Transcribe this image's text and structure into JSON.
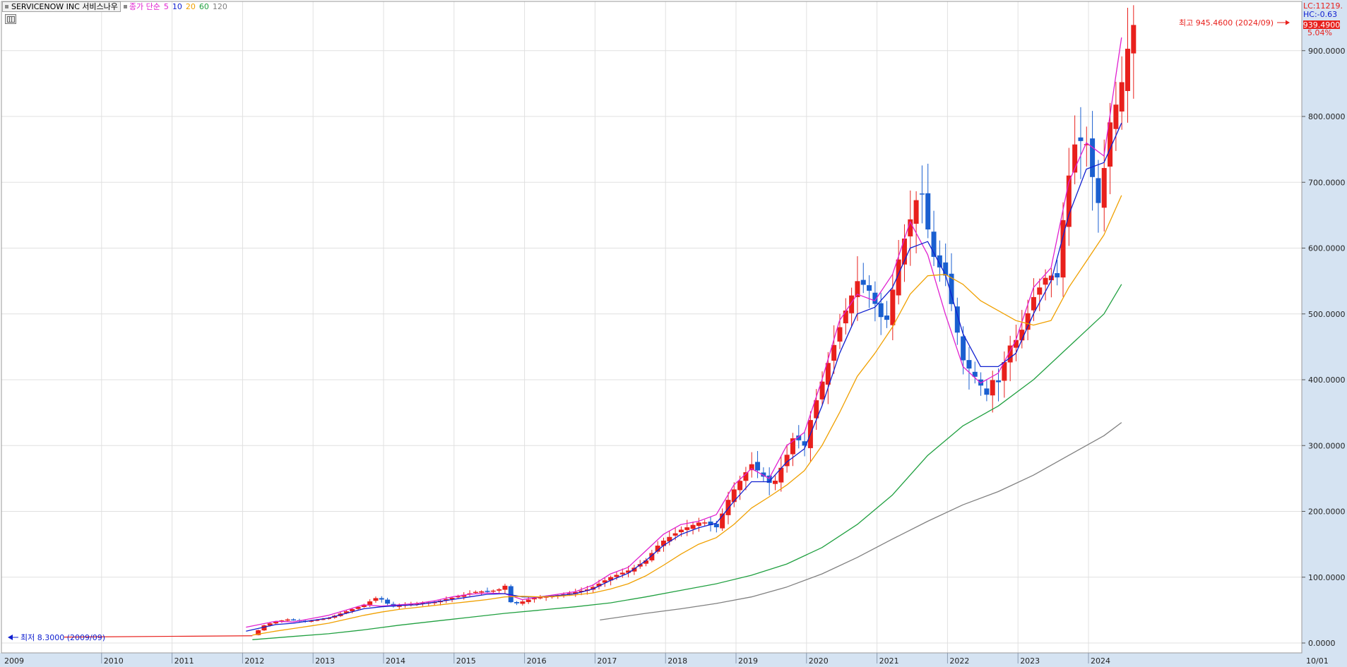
{
  "legend": {
    "title": "SERVICENOW INC  서비스나우",
    "ma_label": "종가 단순",
    "ma_periods": [
      {
        "period": "5",
        "color": "#e020d0"
      },
      {
        "period": "10",
        "color": "#1020d0"
      },
      {
        "period": "20",
        "color": "#f0a000"
      },
      {
        "period": "60",
        "color": "#20a040"
      },
      {
        "period": "120",
        "color": "#808080"
      }
    ]
  },
  "right_panel": {
    "lc": "LC:11219.",
    "hc": "HC:-0.63",
    "last_price": "939.4900",
    "change_pct": "5.04%"
  },
  "annotations": {
    "high": "최고 945.4600 (2024/09)",
    "low": "최저 8.3000 (2009/09)"
  },
  "colors": {
    "up": "#e8201c",
    "down": "#1a5fd0",
    "grid": "#e0e0e0",
    "axis_bg": "#d5e3f2",
    "price_tag": "#e8201c"
  },
  "chart_data": {
    "type": "candlestick",
    "x_axis_labels": [
      "2009",
      "2010",
      "2011",
      "2012",
      "2013",
      "2014",
      "2015",
      "2016",
      "2017",
      "2018",
      "2019",
      "2020",
      "2021",
      "2022",
      "2023",
      "2024",
      "10/01"
    ],
    "y_ticks": [
      "0.0000",
      "100.0000",
      "200.0000",
      "300.0000",
      "400.0000",
      "500.0000",
      "600.0000",
      "700.0000",
      "800.0000",
      "900.0000"
    ],
    "ylim": [
      0,
      980
    ],
    "series": [
      {
        "name": "5",
        "values": [
          [
            2012.33,
            24
          ],
          [
            2012.75,
            33
          ],
          [
            2013.0,
            32
          ],
          [
            2013.25,
            37
          ],
          [
            2013.5,
            42
          ],
          [
            2013.75,
            50
          ],
          [
            2014.0,
            58
          ],
          [
            2014.25,
            56
          ],
          [
            2014.5,
            58
          ],
          [
            2014.75,
            60
          ],
          [
            2015.0,
            64
          ],
          [
            2015.25,
            70
          ],
          [
            2015.5,
            74
          ],
          [
            2015.75,
            76
          ],
          [
            2016.0,
            75
          ],
          [
            2016.25,
            66
          ],
          [
            2016.5,
            70
          ],
          [
            2016.75,
            74
          ],
          [
            2017.0,
            78
          ],
          [
            2017.25,
            88
          ],
          [
            2017.5,
            105
          ],
          [
            2017.75,
            115
          ],
          [
            2018.0,
            140
          ],
          [
            2018.25,
            165
          ],
          [
            2018.5,
            180
          ],
          [
            2018.75,
            185
          ],
          [
            2019.0,
            195
          ],
          [
            2019.25,
            240
          ],
          [
            2019.5,
            265
          ],
          [
            2019.75,
            250
          ],
          [
            2020.0,
            300
          ],
          [
            2020.25,
            320
          ],
          [
            2020.5,
            400
          ],
          [
            2020.75,
            490
          ],
          [
            2021.0,
            530
          ],
          [
            2021.25,
            520
          ],
          [
            2021.5,
            560
          ],
          [
            2021.75,
            640
          ],
          [
            2022.0,
            590
          ],
          [
            2022.25,
            500
          ],
          [
            2022.5,
            420
          ],
          [
            2022.75,
            395
          ],
          [
            2023.0,
            410
          ],
          [
            2023.25,
            460
          ],
          [
            2023.5,
            540
          ],
          [
            2023.75,
            570
          ],
          [
            2024.0,
            700
          ],
          [
            2024.25,
            760
          ],
          [
            2024.5,
            740
          ],
          [
            2024.75,
            920
          ]
        ]
      },
      {
        "name": "10",
        "values": [
          [
            2012.33,
            18
          ],
          [
            2012.75,
            28
          ],
          [
            2013.0,
            30
          ],
          [
            2013.25,
            34
          ],
          [
            2013.5,
            38
          ],
          [
            2013.75,
            45
          ],
          [
            2014.0,
            52
          ],
          [
            2014.25,
            55
          ],
          [
            2014.5,
            57
          ],
          [
            2014.75,
            58
          ],
          [
            2015.0,
            62
          ],
          [
            2015.25,
            66
          ],
          [
            2015.5,
            70
          ],
          [
            2015.75,
            74
          ],
          [
            2016.0,
            75
          ],
          [
            2016.25,
            70
          ],
          [
            2016.5,
            70
          ],
          [
            2016.75,
            72
          ],
          [
            2017.0,
            75
          ],
          [
            2017.25,
            82
          ],
          [
            2017.5,
            95
          ],
          [
            2017.75,
            106
          ],
          [
            2018.0,
            125
          ],
          [
            2018.25,
            148
          ],
          [
            2018.5,
            165
          ],
          [
            2018.75,
            175
          ],
          [
            2019.0,
            182
          ],
          [
            2019.25,
            215
          ],
          [
            2019.5,
            245
          ],
          [
            2019.75,
            245
          ],
          [
            2020.0,
            275
          ],
          [
            2020.25,
            295
          ],
          [
            2020.5,
            360
          ],
          [
            2020.75,
            440
          ],
          [
            2021.0,
            500
          ],
          [
            2021.25,
            510
          ],
          [
            2021.5,
            540
          ],
          [
            2021.75,
            600
          ],
          [
            2022.0,
            610
          ],
          [
            2022.25,
            560
          ],
          [
            2022.5,
            470
          ],
          [
            2022.75,
            420
          ],
          [
            2023.0,
            420
          ],
          [
            2023.25,
            440
          ],
          [
            2023.5,
            500
          ],
          [
            2023.75,
            550
          ],
          [
            2024.0,
            650
          ],
          [
            2024.25,
            720
          ],
          [
            2024.5,
            730
          ],
          [
            2024.75,
            790
          ]
        ]
      },
      {
        "name": "20",
        "values": [
          [
            2012.42,
            12
          ],
          [
            2012.75,
            18
          ],
          [
            2013.0,
            22
          ],
          [
            2013.25,
            26
          ],
          [
            2013.5,
            30
          ],
          [
            2013.75,
            36
          ],
          [
            2014.0,
            42
          ],
          [
            2014.25,
            47
          ],
          [
            2014.5,
            51
          ],
          [
            2014.75,
            54
          ],
          [
            2015.0,
            57
          ],
          [
            2015.25,
            60
          ],
          [
            2015.5,
            63
          ],
          [
            2015.75,
            66
          ],
          [
            2016.0,
            70
          ],
          [
            2016.25,
            71
          ],
          [
            2016.5,
            70
          ],
          [
            2016.75,
            71
          ],
          [
            2017.0,
            73
          ],
          [
            2017.25,
            76
          ],
          [
            2017.5,
            82
          ],
          [
            2017.75,
            90
          ],
          [
            2018.0,
            102
          ],
          [
            2018.25,
            118
          ],
          [
            2018.5,
            135
          ],
          [
            2018.75,
            150
          ],
          [
            2019.0,
            160
          ],
          [
            2019.25,
            180
          ],
          [
            2019.5,
            205
          ],
          [
            2019.75,
            222
          ],
          [
            2020.0,
            240
          ],
          [
            2020.25,
            262
          ],
          [
            2020.5,
            300
          ],
          [
            2020.75,
            350
          ],
          [
            2021.0,
            405
          ],
          [
            2021.25,
            440
          ],
          [
            2021.5,
            480
          ],
          [
            2021.75,
            530
          ],
          [
            2022.0,
            558
          ],
          [
            2022.25,
            560
          ],
          [
            2022.5,
            545
          ],
          [
            2022.75,
            520
          ],
          [
            2023.0,
            505
          ],
          [
            2023.25,
            490
          ],
          [
            2023.5,
            483
          ],
          [
            2023.75,
            490
          ],
          [
            2024.0,
            540
          ],
          [
            2024.25,
            580
          ],
          [
            2024.5,
            620
          ],
          [
            2024.75,
            680
          ]
        ]
      },
      {
        "name": "60",
        "values": [
          [
            2012.42,
            5
          ],
          [
            2013.0,
            10
          ],
          [
            2013.5,
            14
          ],
          [
            2014.0,
            20
          ],
          [
            2014.5,
            27
          ],
          [
            2015.0,
            33
          ],
          [
            2015.5,
            39
          ],
          [
            2016.0,
            45
          ],
          [
            2016.5,
            50
          ],
          [
            2017.0,
            55
          ],
          [
            2017.5,
            61
          ],
          [
            2018.0,
            70
          ],
          [
            2018.5,
            80
          ],
          [
            2019.0,
            90
          ],
          [
            2019.5,
            103
          ],
          [
            2020.0,
            120
          ],
          [
            2020.5,
            145
          ],
          [
            2021.0,
            180
          ],
          [
            2021.5,
            225
          ],
          [
            2022.0,
            285
          ],
          [
            2022.5,
            330
          ],
          [
            2023.0,
            360
          ],
          [
            2023.5,
            400
          ],
          [
            2024.0,
            450
          ],
          [
            2024.5,
            500
          ],
          [
            2024.75,
            545
          ]
        ]
      },
      {
        "name": "120",
        "values": [
          [
            2017.35,
            35
          ],
          [
            2018.0,
            45
          ],
          [
            2018.5,
            52
          ],
          [
            2019.0,
            60
          ],
          [
            2019.5,
            70
          ],
          [
            2020.0,
            85
          ],
          [
            2020.5,
            105
          ],
          [
            2021.0,
            130
          ],
          [
            2021.5,
            158
          ],
          [
            2022.0,
            185
          ],
          [
            2022.5,
            210
          ],
          [
            2023.0,
            230
          ],
          [
            2023.5,
            255
          ],
          [
            2024.0,
            285
          ],
          [
            2024.5,
            315
          ],
          [
            2024.75,
            335
          ]
        ]
      }
    ]
  }
}
